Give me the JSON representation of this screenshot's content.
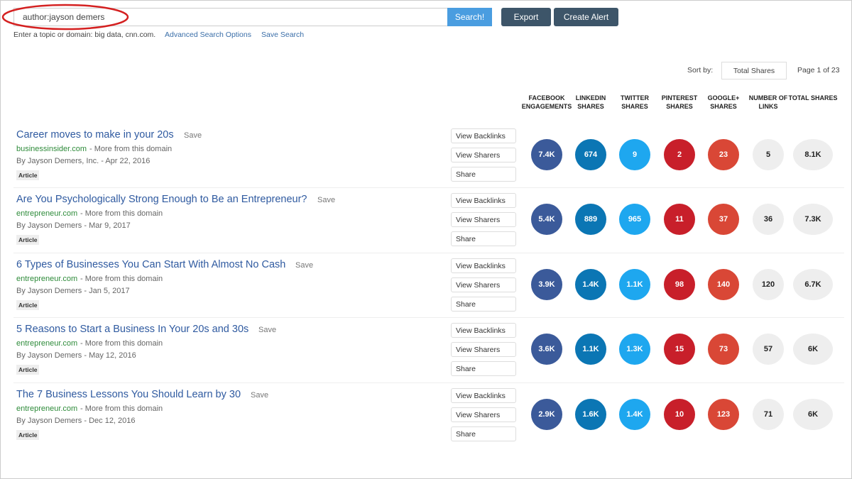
{
  "search": {
    "query": "author:jayson demers",
    "button": "Search!",
    "hint": "Enter a topic or domain: big data, cnn.com.",
    "advanced": "Advanced Search Options",
    "save_search": "Save Search"
  },
  "toolbar": {
    "export": "Export",
    "create_alert": "Create Alert"
  },
  "sort": {
    "label": "Sort by:",
    "selected": "Total Shares",
    "page": "Page 1 of 23"
  },
  "columns": [
    "FACEBOOK ENGAGEMENTS",
    "LINKEDIN SHARES",
    "TWITTER SHARES",
    "PINTEREST SHARES",
    "GOOGLE+ SHARES",
    "NUMBER OF LINKS",
    "TOTAL SHARES"
  ],
  "results": [
    {
      "title": "Career moves to make in your 20s",
      "save": "Save",
      "domain": "businessinsider.com",
      "more": "- More from this domain",
      "byline": "By Jayson Demers, Inc. - Apr 22, 2016",
      "tag": "Article",
      "actions": [
        "View Backlinks",
        "View Sharers",
        "Share"
      ],
      "metrics": [
        "7.4K",
        "674",
        "9",
        "2",
        "23",
        "5",
        "8.1K"
      ]
    },
    {
      "title": "Are You Psychologically Strong Enough to Be an Entrepreneur?",
      "save": "Save",
      "domain": "entrepreneur.com",
      "more": "- More from this domain",
      "byline": "By Jayson Demers - Mar 9, 2017",
      "tag": "Article",
      "actions": [
        "View Backlinks",
        "View Sharers",
        "Share"
      ],
      "metrics": [
        "5.4K",
        "889",
        "965",
        "11",
        "37",
        "36",
        "7.3K"
      ]
    },
    {
      "title": "6 Types of Businesses You Can Start With Almost No Cash",
      "save": "Save",
      "domain": "entrepreneur.com",
      "more": "- More from this domain",
      "byline": "By Jayson Demers - Jan 5, 2017",
      "tag": "Article",
      "actions": [
        "View Backlinks",
        "View Sharers",
        "Share"
      ],
      "metrics": [
        "3.9K",
        "1.4K",
        "1.1K",
        "98",
        "140",
        "120",
        "6.7K"
      ]
    },
    {
      "title": "5 Reasons to Start a Business In Your 20s and 30s",
      "save": "Save",
      "domain": "entrepreneur.com",
      "more": "- More from this domain",
      "byline": "By Jayson Demers - May 12, 2016",
      "tag": "Article",
      "actions": [
        "View Backlinks",
        "View Sharers",
        "Share"
      ],
      "metrics": [
        "3.6K",
        "1.1K",
        "1.3K",
        "15",
        "73",
        "57",
        "6K"
      ]
    },
    {
      "title": "The 7 Business Lessons You Should Learn by 30",
      "save": "Save",
      "domain": "entrepreneur.com",
      "more": "- More from this domain",
      "byline": "By Jayson Demers - Dec 12, 2016",
      "tag": "Article",
      "actions": [
        "View Backlinks",
        "View Sharers",
        "Share"
      ],
      "metrics": [
        "2.9K",
        "1.6K",
        "1.4K",
        "10",
        "123",
        "71",
        "6K"
      ]
    }
  ]
}
